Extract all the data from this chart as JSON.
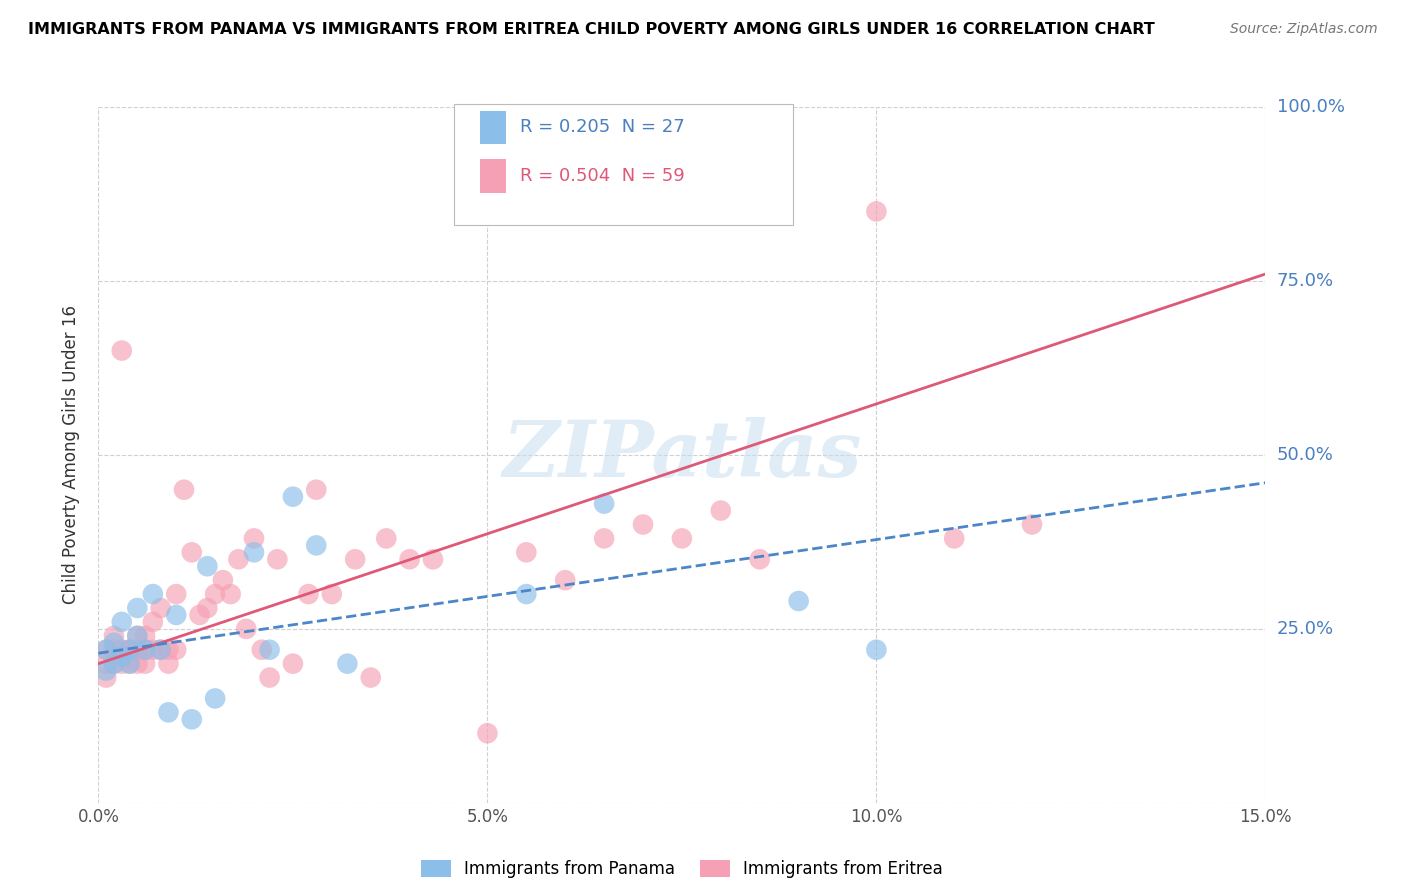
{
  "title": "IMMIGRANTS FROM PANAMA VS IMMIGRANTS FROM ERITREA CHILD POVERTY AMONG GIRLS UNDER 16 CORRELATION CHART",
  "source": "Source: ZipAtlas.com",
  "ylabel": "Child Poverty Among Girls Under 16",
  "legend_panama": "Immigrants from Panama",
  "legend_eritrea": "Immigrants from Eritrea",
  "R_panama": 0.205,
  "N_panama": 27,
  "R_eritrea": 0.504,
  "N_eritrea": 59,
  "xlim": [
    0.0,
    0.15
  ],
  "ylim": [
    0.0,
    1.0
  ],
  "yticks": [
    0.0,
    0.25,
    0.5,
    0.75,
    1.0
  ],
  "ytick_labels": [
    "",
    "25.0%",
    "50.0%",
    "75.0%",
    "100.0%"
  ],
  "xticks": [
    0.0,
    0.05,
    0.1,
    0.15
  ],
  "xtick_labels": [
    "0.0%",
    "5.0%",
    "10.0%",
    "15.0%"
  ],
  "color_panama": "#8bbee8",
  "color_eritrea": "#f5a0b5",
  "trendline_panama_color": "#4a86c8",
  "trendline_eritrea_color": "#e05878",
  "watermark": "ZIPatlas",
  "panama_x": [
    0.001,
    0.001,
    0.002,
    0.002,
    0.003,
    0.003,
    0.004,
    0.004,
    0.005,
    0.005,
    0.006,
    0.007,
    0.008,
    0.009,
    0.01,
    0.012,
    0.014,
    0.015,
    0.02,
    0.022,
    0.025,
    0.028,
    0.032,
    0.055,
    0.065,
    0.09,
    0.1
  ],
  "panama_y": [
    0.22,
    0.19,
    0.2,
    0.23,
    0.21,
    0.26,
    0.22,
    0.2,
    0.24,
    0.28,
    0.22,
    0.3,
    0.22,
    0.13,
    0.27,
    0.12,
    0.34,
    0.15,
    0.36,
    0.22,
    0.44,
    0.37,
    0.2,
    0.3,
    0.43,
    0.29,
    0.22
  ],
  "eritrea_x": [
    0.001,
    0.001,
    0.001,
    0.002,
    0.002,
    0.002,
    0.003,
    0.003,
    0.003,
    0.004,
    0.004,
    0.004,
    0.005,
    0.005,
    0.005,
    0.006,
    0.006,
    0.006,
    0.007,
    0.007,
    0.008,
    0.008,
    0.009,
    0.009,
    0.01,
    0.01,
    0.011,
    0.012,
    0.013,
    0.014,
    0.015,
    0.016,
    0.017,
    0.018,
    0.019,
    0.02,
    0.021,
    0.022,
    0.023,
    0.025,
    0.027,
    0.028,
    0.03,
    0.033,
    0.035,
    0.037,
    0.04,
    0.043,
    0.05,
    0.055,
    0.06,
    0.065,
    0.07,
    0.075,
    0.08,
    0.085,
    0.1,
    0.11,
    0.12
  ],
  "eritrea_y": [
    0.22,
    0.2,
    0.18,
    0.22,
    0.2,
    0.24,
    0.65,
    0.22,
    0.2,
    0.22,
    0.2,
    0.22,
    0.22,
    0.24,
    0.2,
    0.24,
    0.22,
    0.2,
    0.26,
    0.22,
    0.28,
    0.22,
    0.22,
    0.2,
    0.3,
    0.22,
    0.45,
    0.36,
    0.27,
    0.28,
    0.3,
    0.32,
    0.3,
    0.35,
    0.25,
    0.38,
    0.22,
    0.18,
    0.35,
    0.2,
    0.3,
    0.45,
    0.3,
    0.35,
    0.18,
    0.38,
    0.35,
    0.35,
    0.1,
    0.36,
    0.32,
    0.38,
    0.4,
    0.38,
    0.42,
    0.35,
    0.85,
    0.38,
    0.4
  ],
  "trendline_eritrea_x0": 0.0,
  "trendline_eritrea_y0": 0.2,
  "trendline_eritrea_x1": 0.15,
  "trendline_eritrea_y1": 0.76,
  "trendline_panama_x0": 0.0,
  "trendline_panama_y0": 0.215,
  "trendline_panama_x1": 0.15,
  "trendline_panama_y1": 0.46
}
